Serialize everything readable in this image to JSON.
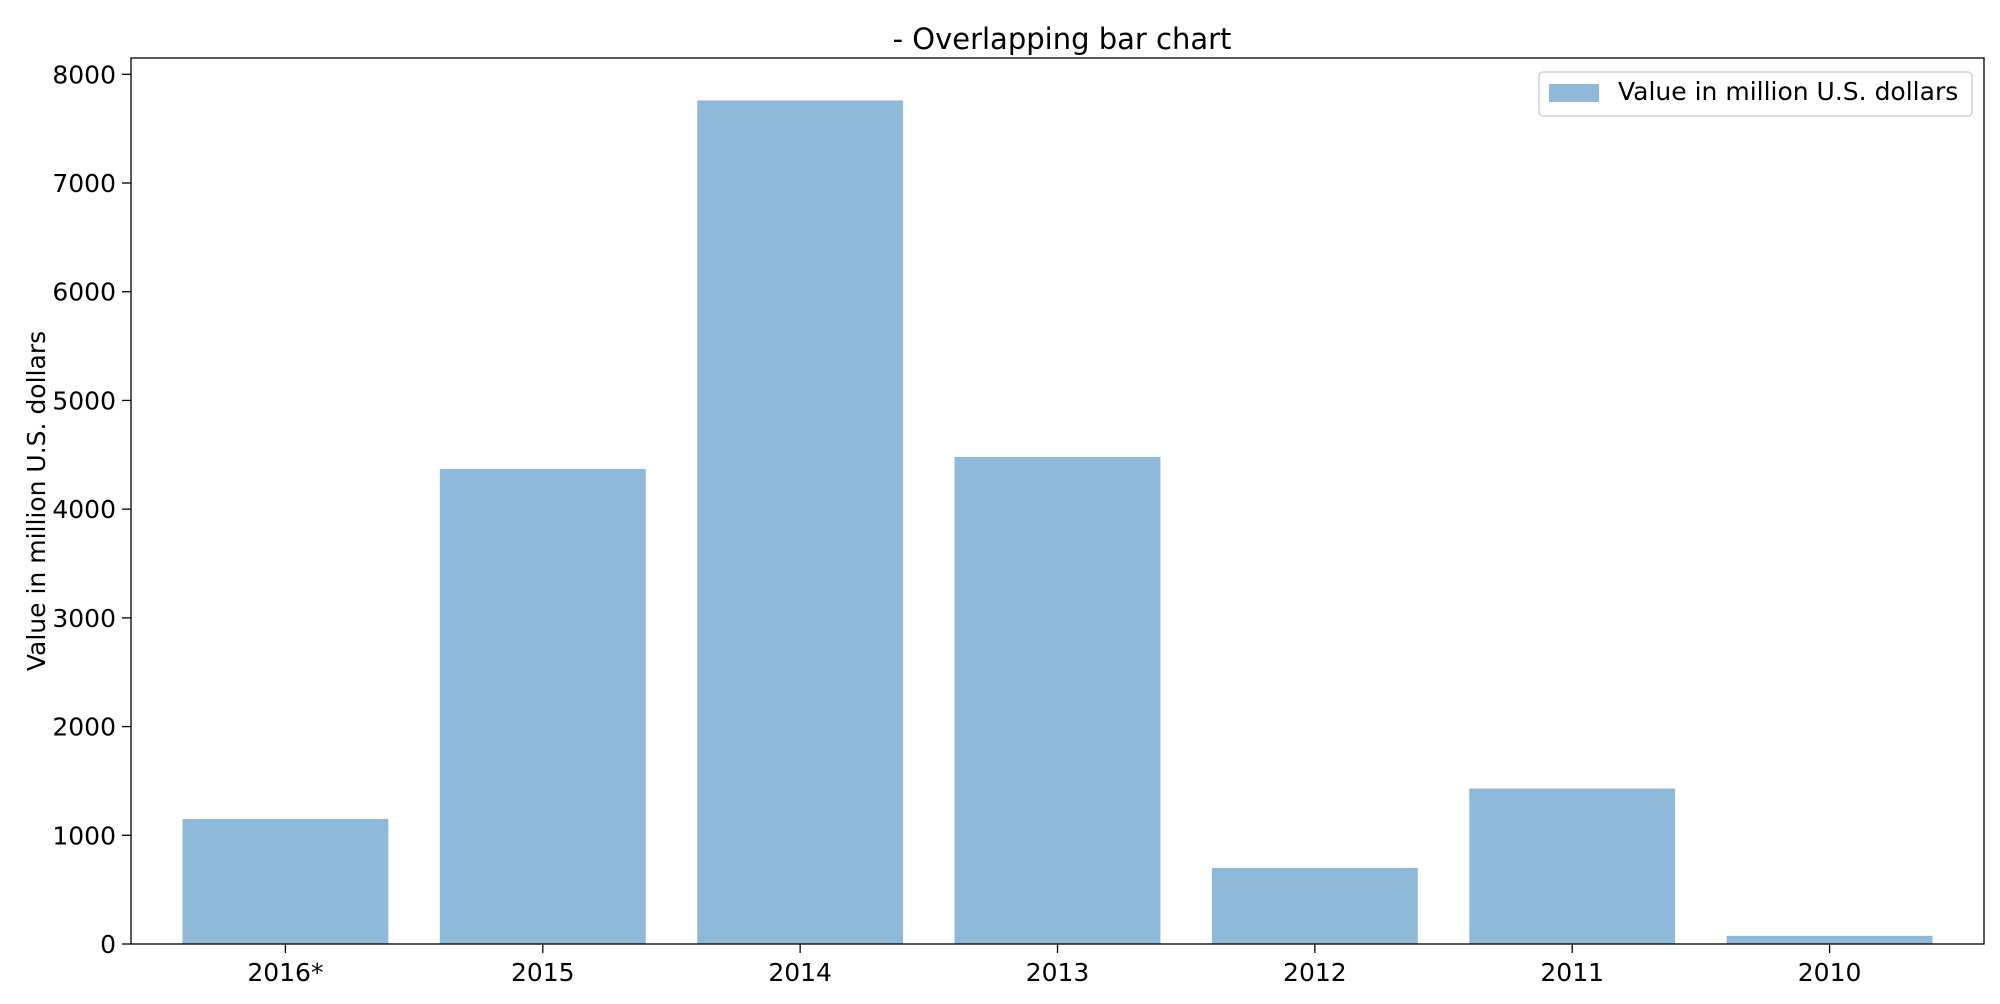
{
  "chart_data": {
    "type": "bar",
    "title": "- Overlapping bar chart",
    "xlabel": "",
    "ylabel": "Value in million U.S. dollars",
    "categories": [
      "2016*",
      "2015",
      "2014",
      "2013",
      "2012",
      "2011",
      "2010"
    ],
    "series": [
      {
        "name": "Value in million U.S. dollars",
        "values": [
          1150,
          4370,
          7760,
          4480,
          700,
          1430,
          75
        ],
        "color": "#8fb9d9"
      }
    ],
    "ylim": [
      0,
      8150
    ],
    "yticks": [
      0,
      1000,
      2000,
      3000,
      4000,
      5000,
      6000,
      7000,
      8000
    ],
    "grid": false,
    "legend_position": "top-right"
  }
}
